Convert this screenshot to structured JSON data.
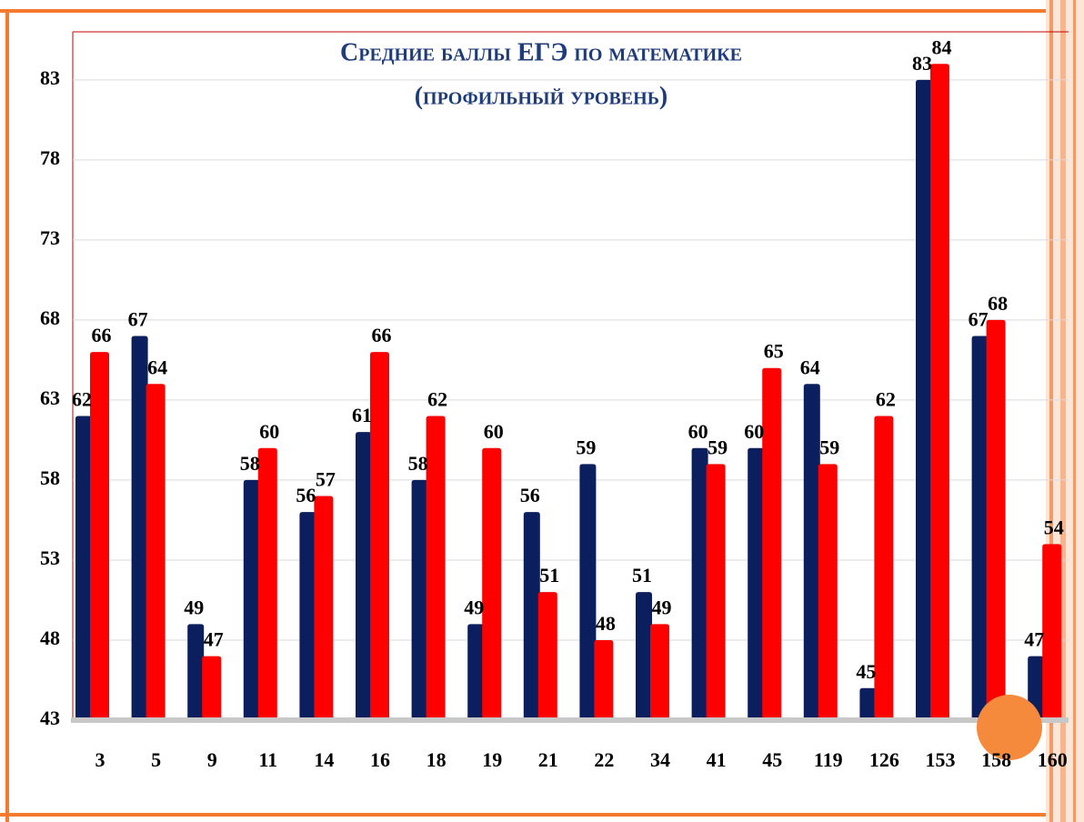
{
  "chart_data": {
    "type": "bar",
    "title": "Средние баллы ЕГЭ по математике",
    "subtitle": "(профильный уровень)",
    "categories": [
      "3",
      "5",
      "9",
      "11",
      "14",
      "16",
      "18",
      "19",
      "21",
      "22",
      "34",
      "41",
      "45",
      "119",
      "126",
      "153",
      "158",
      "160"
    ],
    "series": [
      {
        "color": "#0b1f5e",
        "values": [
          62,
          67,
          49,
          58,
          56,
          61,
          58,
          49,
          56,
          59,
          51,
          60,
          60,
          64,
          45,
          83,
          67,
          47
        ]
      },
      {
        "color": "#ff0000",
        "values": [
          66,
          64,
          47,
          60,
          57,
          66,
          62,
          60,
          51,
          48,
          49,
          59,
          65,
          59,
          62,
          84,
          68,
          54
        ]
      }
    ],
    "ylim": [
      43,
      86
    ],
    "yticks": [
      43,
      48,
      53,
      58,
      63,
      68,
      73,
      78,
      83
    ],
    "grid": true
  }
}
